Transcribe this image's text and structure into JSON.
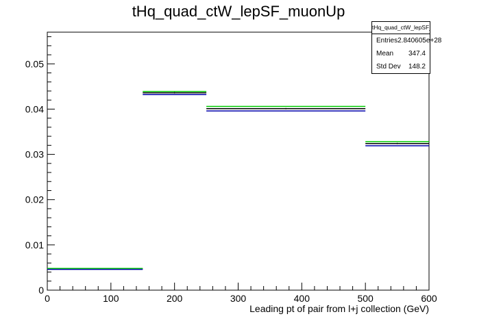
{
  "chart_data": {
    "type": "histogram",
    "title": "tHq_quad_ctW_lepSF_muonUp",
    "xlabel": "Leading pt of pair from l+j collection (GeV)",
    "ylabel": "",
    "xlim": [
      0,
      600
    ],
    "ylim": [
      0,
      0.057
    ],
    "x_ticks": [
      0,
      100,
      200,
      300,
      400,
      500,
      600
    ],
    "y_ticks": [
      0,
      0.01,
      0.02,
      0.03,
      0.04,
      0.05
    ],
    "x_tick_labels": [
      "0",
      "100",
      "200",
      "300",
      "400",
      "500",
      "600"
    ],
    "y_tick_labels": [
      "0",
      "0.01",
      "0.02",
      "0.03",
      "0.04",
      "0.05"
    ],
    "bins": [
      [
        0,
        150
      ],
      [
        150,
        250
      ],
      [
        250,
        500
      ],
      [
        500,
        600
      ]
    ],
    "series": [
      {
        "color": "#000000",
        "values": [
          0.0047,
          0.0436,
          0.0401,
          0.0324
        ]
      },
      {
        "color": "#00cc00",
        "values": [
          0.0048,
          0.0439,
          0.0406,
          0.0328
        ]
      },
      {
        "color": "#0000aa",
        "values": [
          0.0046,
          0.0432,
          0.0396,
          0.0319
        ]
      }
    ],
    "grid": false,
    "legend": "none"
  },
  "stats": {
    "name": "tHq_quad_ctW_lepSF_muonUp",
    "entries_label": "Entries",
    "entries_value": "2.840605e+28",
    "mean_label": "Mean",
    "mean_value": "347.4",
    "stddev_label": "Std Dev",
    "stddev_value": "148.2"
  }
}
